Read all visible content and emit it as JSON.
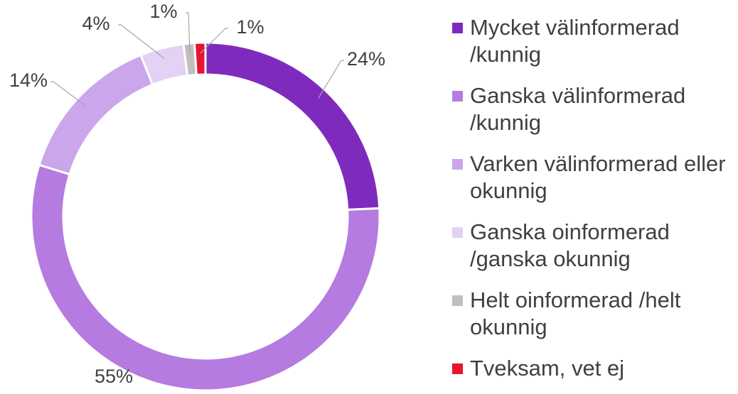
{
  "chart_data": {
    "type": "donut",
    "categories": [
      "Mycket välinformerad /kunnig",
      "Ganska välinformerad /kunnig",
      "Varken välinformerad eller okunnig",
      "Ganska oinformerad /ganska okunnig",
      "Helt oinformerad /helt okunnig",
      "Tveksam, vet ej"
    ],
    "values": [
      24,
      55,
      14,
      4,
      1,
      1
    ],
    "value_labels": [
      "24%",
      "55%",
      "14%",
      "4%",
      "1%",
      "1%"
    ],
    "colors": [
      "#7e2bbd",
      "#b57be0",
      "#cba6eb",
      "#e4d1f4",
      "#bfbfbf",
      "#e8132f"
    ]
  }
}
